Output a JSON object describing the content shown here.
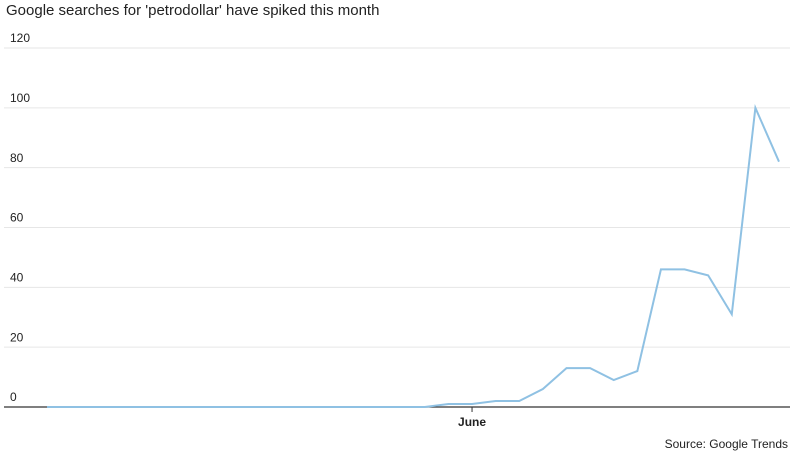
{
  "chart_data": {
    "type": "line",
    "title": "Google searches for 'petrodollar' have spiked this month",
    "source": "Source: Google Trends",
    "categories": [
      null,
      null,
      null,
      null,
      null,
      null,
      null,
      null,
      null,
      null,
      null,
      null,
      null,
      null,
      null,
      null,
      null,
      null,
      "June",
      null,
      null,
      null,
      null,
      null,
      null,
      null,
      null,
      null,
      null,
      null,
      null,
      null
    ],
    "series": [
      {
        "color": "#8fc1e3",
        "values": [
          0,
          0,
          0,
          0,
          0,
          0,
          0,
          0,
          0,
          0,
          0,
          0,
          0,
          0,
          0,
          0,
          0,
          1,
          1,
          2,
          2,
          6,
          13,
          13,
          9,
          12,
          46,
          46,
          44,
          31,
          100,
          82
        ]
      }
    ],
    "ylim": [
      0,
      120
    ],
    "yticks": [
      0,
      20,
      40,
      60,
      80,
      100,
      120
    ],
    "grid": true
  }
}
